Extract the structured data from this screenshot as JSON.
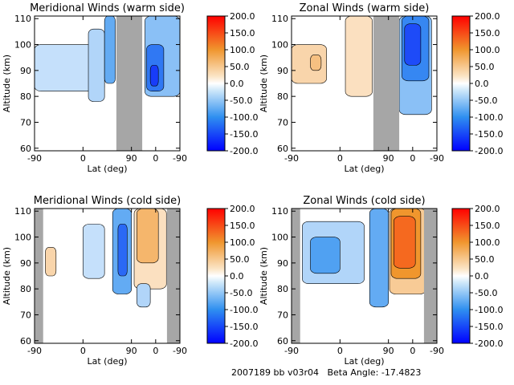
{
  "footer": {
    "run_id": "2007189 bb v03r04",
    "beta_label": "Beta Angle:",
    "beta_value": "-17.4823"
  },
  "chart_data": [
    {
      "type": "heatmap",
      "title": "Meridional Winds (warm side)",
      "xlabel": "Lat (deg)",
      "ylabel": "Altitude (km)",
      "x_ticks": [
        "-90",
        "0",
        "90",
        "0",
        "-90"
      ],
      "y_ticks": [
        60,
        70,
        80,
        90,
        100,
        110
      ],
      "ylim": [
        59,
        111
      ],
      "no_data_bands_lat": [
        [
          62,
          110
        ]
      ],
      "colorbar": {
        "ticks": [
          "200.0",
          "150.0",
          "100.0",
          "50.0",
          "0.0",
          "-50.0",
          "-100.0",
          "-150.0",
          "-200.0"
        ],
        "range": [
          -200,
          200
        ]
      },
      "regions": [
        {
          "x": [
            -90,
            40
          ],
          "y": [
            82,
            100
          ],
          "value": -30
        },
        {
          "x": [
            10,
            40
          ],
          "y": [
            78,
            106
          ],
          "value": -40
        },
        {
          "x": [
            40,
            60
          ],
          "y": [
            85,
            111
          ],
          "value": -80
        },
        {
          "x": [
            115,
            180
          ],
          "y": [
            80,
            111
          ],
          "value": -60
        },
        {
          "x": [
            118,
            150
          ],
          "y": [
            82,
            100
          ],
          "value": -120
        },
        {
          "x": [
            125,
            140
          ],
          "y": [
            84,
            92
          ],
          "value": -160
        }
      ]
    },
    {
      "type": "heatmap",
      "title": "Zonal Winds (warm side)",
      "xlabel": "Lat (deg)",
      "ylabel": "Altitude (km)",
      "x_ticks": [
        "-90",
        "0",
        "90",
        "0",
        "-90"
      ],
      "y_ticks": [
        60,
        70,
        80,
        90,
        100,
        110
      ],
      "ylim": [
        59,
        111
      ],
      "no_data_bands_lat": [
        [
          62,
          110
        ]
      ],
      "colorbar": {
        "ticks": [
          "200.0",
          "150.0",
          "100.0",
          "50.0",
          "0.0",
          "-50.0",
          "-100.0",
          "-150.0",
          "-200.0"
        ],
        "range": [
          -200,
          200
        ]
      },
      "regions": [
        {
          "x": [
            -90,
            -25
          ],
          "y": [
            85,
            100
          ],
          "value": 40
        },
        {
          "x": [
            -55,
            -35
          ],
          "y": [
            90,
            96
          ],
          "value": 60
        },
        {
          "x": [
            10,
            60
          ],
          "y": [
            80,
            111
          ],
          "value": 30
        },
        {
          "x": [
            110,
            170
          ],
          "y": [
            73,
            111
          ],
          "value": -60
        },
        {
          "x": [
            115,
            165
          ],
          "y": [
            86,
            111
          ],
          "value": -110
        },
        {
          "x": [
            120,
            150
          ],
          "y": [
            92,
            108
          ],
          "value": -150
        }
      ]
    },
    {
      "type": "heatmap",
      "title": "Meridional Winds (cold side)",
      "xlabel": "Lat (deg)",
      "ylabel": "Altitude (km)",
      "x_ticks": [
        "-90",
        "0",
        "90",
        "0",
        "-90"
      ],
      "y_ticks": [
        60,
        70,
        80,
        90,
        100,
        110
      ],
      "ylim": [
        59,
        111
      ],
      "no_data_bands_lat": [
        [
          -90,
          -74
        ],
        [
          156,
          180
        ]
      ],
      "colorbar": {
        "ticks": [
          "200.0",
          "150.0",
          "100.0",
          "50.0",
          "0.0",
          "-50.0",
          "-100.0",
          "-150.0",
          "-200.0"
        ],
        "range": [
          -200,
          200
        ]
      },
      "regions": [
        {
          "x": [
            -70,
            -50
          ],
          "y": [
            85,
            96
          ],
          "value": 40
        },
        {
          "x": [
            0,
            40
          ],
          "y": [
            84,
            105
          ],
          "value": -30
        },
        {
          "x": [
            55,
            90
          ],
          "y": [
            78,
            111
          ],
          "value": -80
        },
        {
          "x": [
            65,
            82
          ],
          "y": [
            85,
            105
          ],
          "value": -130
        },
        {
          "x": [
            95,
            155
          ],
          "y": [
            80,
            111
          ],
          "value": 30
        },
        {
          "x": [
            100,
            140
          ],
          "y": [
            90,
            111
          ],
          "value": 70
        },
        {
          "x": [
            100,
            125
          ],
          "y": [
            73,
            82
          ],
          "value": -40
        }
      ]
    },
    {
      "type": "heatmap",
      "title": "Zonal Winds (cold side)",
      "xlabel": "Lat (deg)",
      "ylabel": "Altitude (km)",
      "x_ticks": [
        "-90",
        "0",
        "90",
        "0",
        "-90"
      ],
      "y_ticks": [
        60,
        70,
        80,
        90,
        100,
        110
      ],
      "ylim": [
        59,
        111
      ],
      "no_data_bands_lat": [
        [
          -90,
          -74
        ],
        [
          156,
          180
        ]
      ],
      "colorbar": {
        "ticks": [
          "200.0",
          "150.0",
          "100.0",
          "50.0",
          "0.0",
          "-50.0",
          "-100.0",
          "-150.0",
          "-200.0"
        ],
        "range": [
          -200,
          200
        ]
      },
      "regions": [
        {
          "x": [
            -70,
            45
          ],
          "y": [
            82,
            106
          ],
          "value": -40
        },
        {
          "x": [
            -55,
            0
          ],
          "y": [
            86,
            100
          ],
          "value": -90
        },
        {
          "x": [
            55,
            90
          ],
          "y": [
            73,
            111
          ],
          "value": -80
        },
        {
          "x": [
            92,
            160
          ],
          "y": [
            78,
            111
          ],
          "value": 50
        },
        {
          "x": [
            95,
            150
          ],
          "y": [
            84,
            111
          ],
          "value": 100
        },
        {
          "x": [
            100,
            140
          ],
          "y": [
            88,
            108
          ],
          "value": 130
        }
      ]
    }
  ]
}
